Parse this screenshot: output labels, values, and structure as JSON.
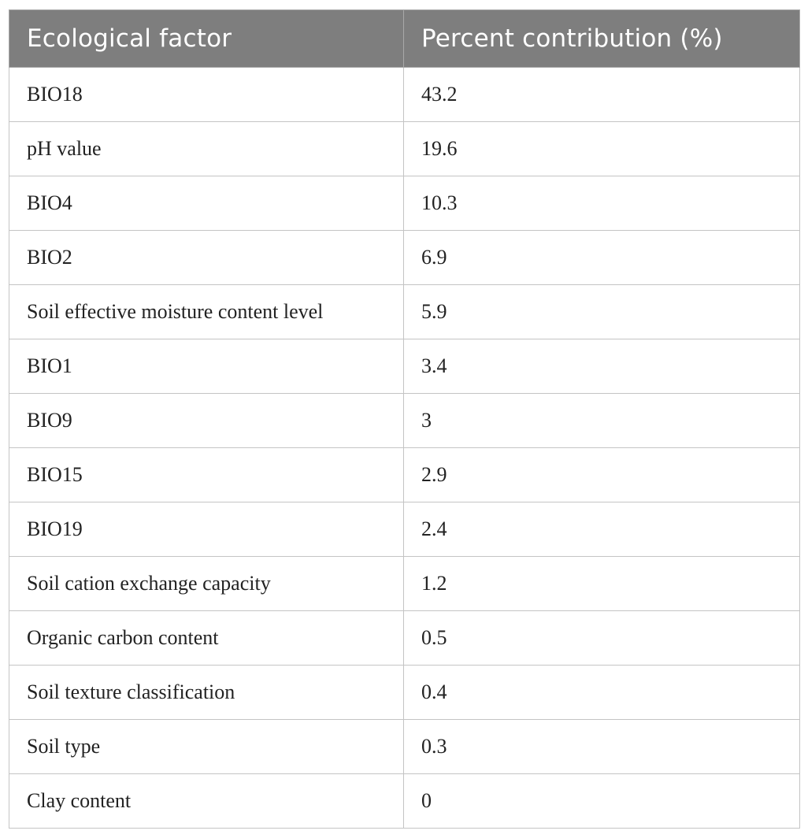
{
  "table": {
    "headers": [
      "Ecological factor",
      "Percent contribution (%)"
    ],
    "rows": [
      [
        "BIO18",
        "43.2"
      ],
      [
        "pH value",
        "19.6"
      ],
      [
        "BIO4",
        "10.3"
      ],
      [
        "BIO2",
        "6.9"
      ],
      [
        "Soil effective moisture content level",
        "5.9"
      ],
      [
        "BIO1",
        "3.4"
      ],
      [
        "BIO9",
        "3"
      ],
      [
        "BIO15",
        "2.9"
      ],
      [
        "BIO19",
        "2.4"
      ],
      [
        "Soil cation exchange capacity",
        "1.2"
      ],
      [
        "Organic carbon content",
        "0.5"
      ],
      [
        "Soil texture classification",
        "0.4"
      ],
      [
        "Soil type",
        "0.3"
      ],
      [
        "Clay content",
        "0"
      ]
    ]
  },
  "colors": {
    "header_background": "#7e7e7e",
    "header_text": "#ffffff",
    "grid_line": "#c4c4c4"
  }
}
